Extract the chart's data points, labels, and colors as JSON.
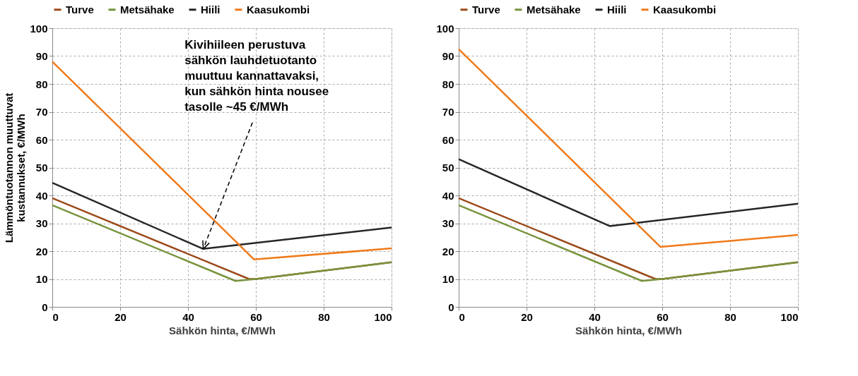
{
  "chart_data": [
    {
      "type": "line",
      "xlabel": "Sähkön hinta, €/MWh",
      "ylabel": "Lämmöntuotannon muuttuvat kustannukset, €/MWh",
      "xlim": [
        0,
        100
      ],
      "xticks": [
        0,
        20,
        40,
        60,
        80,
        100
      ],
      "ylim": [
        0,
        100
      ],
      "yticks": [
        0,
        10,
        20,
        30,
        40,
        50,
        60,
        70,
        80,
        90,
        100
      ],
      "grid": true,
      "legend": "top",
      "marker": "none",
      "line_style": "solid",
      "annotations": [
        {
          "text": "Kivihiileen perustuva\nsähkön lauhdetuotanto\nmuuttuu kannattavaksi,\nkun sähkön hinta nousee\ntasolle ~45 €/MWh",
          "x": 44.5,
          "y": 20.8
        }
      ],
      "series": [
        {
          "name": "Turve",
          "color": "#9c4a1a",
          "x": [
            0,
            58,
            60,
            100
          ],
          "values": [
            39,
            10,
            10,
            16
          ]
        },
        {
          "name": "Metsähake",
          "color": "#77933c",
          "x": [
            0,
            54,
            60,
            100
          ],
          "values": [
            36.5,
            9.3,
            10,
            16
          ]
        },
        {
          "name": "Hiili",
          "color": "#262626",
          "x": [
            0,
            44.5,
            100
          ],
          "values": [
            44.5,
            20.8,
            28.5
          ]
        },
        {
          "name": "Kaasukombi",
          "color": "#f07a1a",
          "x": [
            0,
            59.5,
            100
          ],
          "values": [
            88,
            17,
            21
          ]
        }
      ]
    },
    {
      "type": "line",
      "xlabel": "Sähkön hinta, €/MWh",
      "xlim": [
        0,
        100
      ],
      "xticks": [
        0,
        20,
        40,
        60,
        80,
        100
      ],
      "ylim": [
        0,
        100
      ],
      "yticks": [
        0,
        10,
        20,
        30,
        40,
        50,
        60,
        70,
        80,
        90,
        100
      ],
      "grid": true,
      "legend": "top",
      "marker": "none",
      "line_style": "solid",
      "series": [
        {
          "name": "Turve",
          "color": "#9c4a1a",
          "x": [
            0,
            58,
            60,
            100
          ],
          "values": [
            39,
            10,
            10,
            16
          ]
        },
        {
          "name": "Metsähake",
          "color": "#77933c",
          "x": [
            0,
            54,
            60,
            100
          ],
          "values": [
            36.5,
            9.3,
            10,
            16
          ]
        },
        {
          "name": "Hiili",
          "color": "#262626",
          "x": [
            0,
            44.5,
            100
          ],
          "values": [
            53,
            29,
            37
          ]
        },
        {
          "name": "Kaasukombi",
          "color": "#f07a1a",
          "x": [
            0,
            59.5,
            100
          ],
          "values": [
            92.5,
            21.5,
            25.8
          ]
        }
      ]
    }
  ]
}
